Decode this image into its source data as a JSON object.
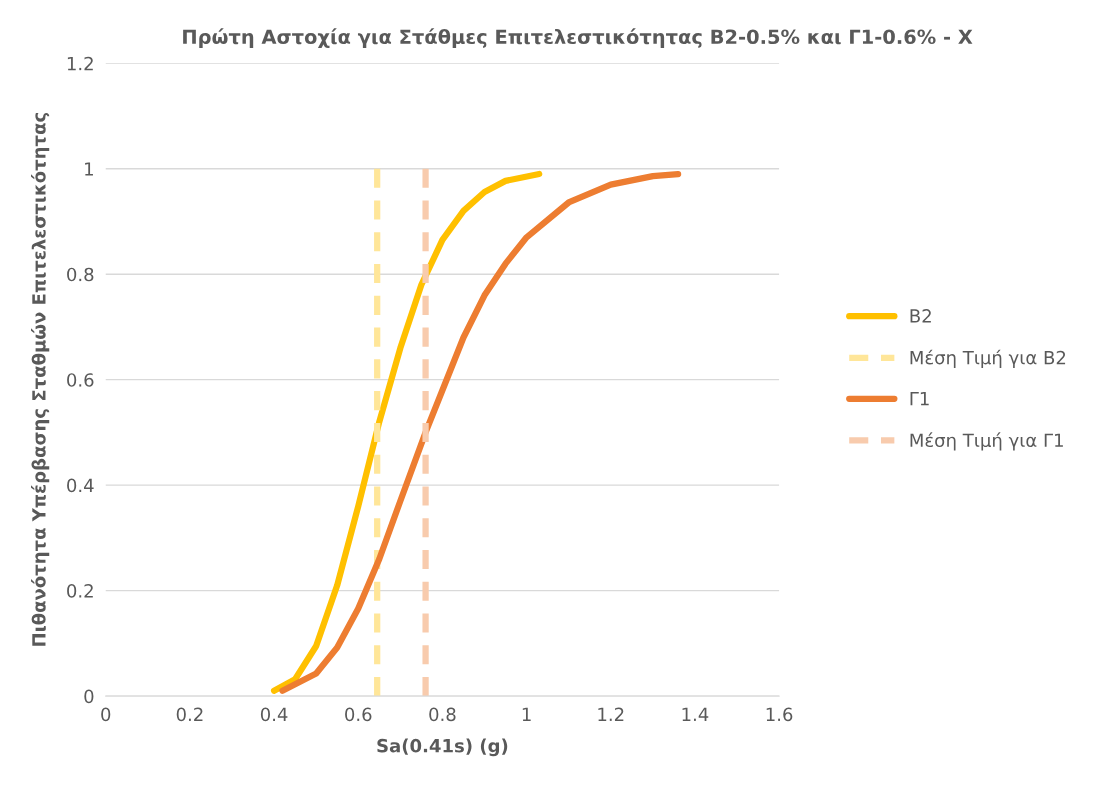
{
  "chart_data": {
    "type": "line",
    "title": "Πρώτη Αστοχία για Στάθμες Επιτελεστικότητας Β2-0.5% και Γ1-0.6% - X",
    "xlabel": "Sa(0.41s) (g)",
    "ylabel": "Πιθανότητα Υπέρβασης Σταθμών Επιτελεστικότητας",
    "xlim": [
      0,
      1.6
    ],
    "xticks": [
      0,
      0.2,
      0.4,
      0.6,
      0.8,
      1,
      1.2,
      1.4,
      1.6
    ],
    "ylim": [
      0,
      1.2
    ],
    "yticks": [
      0,
      0.2,
      0.4,
      0.6,
      0.8,
      1,
      1.2
    ],
    "grid": "y",
    "legend": "right",
    "marker": "none",
    "series": [
      {
        "name": "Β2",
        "color": "#ffc000",
        "line_style": "solid",
        "x": [
          0.4,
          0.45,
          0.5,
          0.55,
          0.6,
          0.65,
          0.7,
          0.75,
          0.8,
          0.85,
          0.9,
          0.95,
          1.03
        ],
        "values": [
          0.01,
          0.032,
          0.095,
          0.21,
          0.36,
          0.52,
          0.66,
          0.78,
          0.865,
          0.92,
          0.956,
          0.977,
          0.99
        ]
      },
      {
        "name": "Μέση Τιμή για Β2",
        "color": "#ffe699",
        "line_style": "dashed",
        "x": [
          0.645,
          0.645
        ],
        "values": [
          0,
          1
        ]
      },
      {
        "name": "Γ1",
        "color": "#ed7d31",
        "line_style": "solid",
        "x": [
          0.42,
          0.5,
          0.55,
          0.6,
          0.65,
          0.7,
          0.76,
          0.8,
          0.85,
          0.9,
          0.95,
          1.0,
          1.1,
          1.2,
          1.3,
          1.36
        ],
        "values": [
          0.01,
          0.043,
          0.092,
          0.166,
          0.26,
          0.37,
          0.5,
          0.58,
          0.68,
          0.76,
          0.82,
          0.87,
          0.936,
          0.97,
          0.986,
          0.99
        ]
      },
      {
        "name": "Μέση Τιμή για Γ1",
        "color": "#f8cbad",
        "line_style": "dashed",
        "x": [
          0.76,
          0.76
        ],
        "values": [
          0,
          1
        ]
      }
    ]
  }
}
